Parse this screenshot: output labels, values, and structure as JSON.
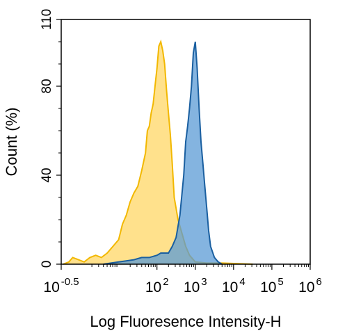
{
  "chart_data": {
    "type": "area",
    "xlabel": "Log Fluoresence Intensity-H",
    "ylabel": "Count  (%)",
    "xscale": "log",
    "xlim": [
      -0.5,
      6
    ],
    "ylim": [
      0,
      110
    ],
    "grid": false,
    "legend": "none",
    "x_ticks": [
      {
        "value": -0.5,
        "base": "10",
        "exp": "-0.5"
      },
      {
        "value": 2,
        "base": "10",
        "exp": "2"
      },
      {
        "value": 3,
        "base": "10",
        "exp": "3"
      },
      {
        "value": 4,
        "base": "10",
        "exp": "4"
      },
      {
        "value": 5,
        "base": "10",
        "exp": "5"
      },
      {
        "value": 6,
        "base": "10",
        "exp": "6"
      }
    ],
    "y_ticks": [
      "0",
      "40",
      "80",
      "110"
    ],
    "series": [
      {
        "color_stroke": "#F2B800",
        "color_fill": "#FFD766",
        "x": [
          -0.45,
          -0.3,
          -0.2,
          -0.05,
          0.1,
          0.25,
          0.4,
          0.55,
          0.7,
          0.85,
          1.0,
          1.1,
          1.2,
          1.3,
          1.4,
          1.5,
          1.6,
          1.7,
          1.75,
          1.8,
          1.85,
          1.9,
          1.95,
          2.0,
          2.05,
          2.1,
          2.15,
          2.2,
          2.25,
          2.3,
          2.35,
          2.4,
          2.45,
          2.55,
          2.65,
          2.75,
          2.85,
          3.0,
          3.3,
          3.7,
          4.5
        ],
        "y": [
          0,
          1,
          3,
          2,
          1,
          3,
          4,
          3,
          5,
          8,
          11,
          18,
          22,
          28,
          32,
          35,
          42,
          50,
          60,
          62,
          68,
          72,
          80,
          88,
          98,
          100,
          96,
          90,
          78,
          68,
          58,
          45,
          30,
          20,
          14,
          8,
          4,
          1,
          0.5,
          0.5,
          0
        ]
      },
      {
        "color_stroke": "#1A5FA0",
        "color_fill": "#5B9BD5",
        "x": [
          0.6,
          0.8,
          1.0,
          1.2,
          1.4,
          1.6,
          1.8,
          2.0,
          2.1,
          2.2,
          2.3,
          2.4,
          2.5,
          2.6,
          2.7,
          2.75,
          2.8,
          2.85,
          2.9,
          2.95,
          3.0,
          3.05,
          3.1,
          3.15,
          3.2,
          3.25,
          3.3,
          3.35,
          3.4,
          3.5,
          3.6,
          3.7
        ],
        "y": [
          0,
          0.5,
          1,
          1.5,
          2,
          3,
          3,
          4,
          5,
          5,
          5,
          8,
          12,
          22,
          40,
          55,
          62,
          70,
          80,
          95,
          100,
          88,
          70,
          55,
          45,
          35,
          25,
          15,
          8,
          3,
          1,
          0
        ]
      }
    ]
  }
}
